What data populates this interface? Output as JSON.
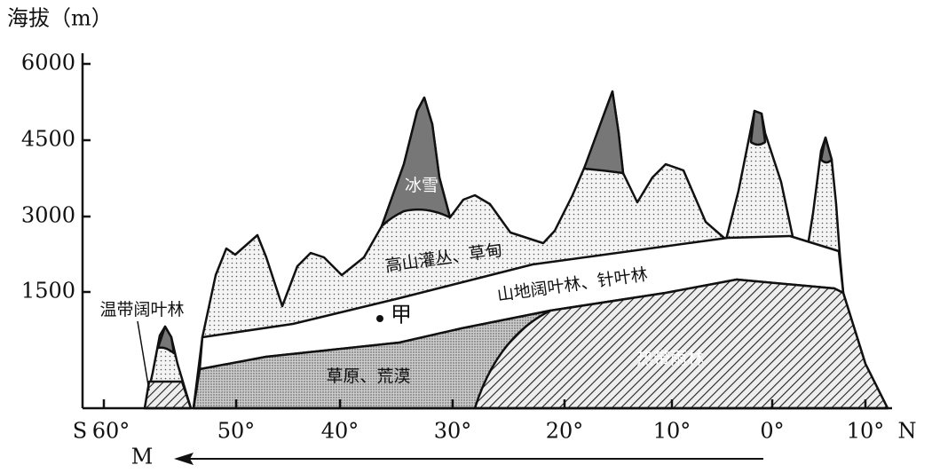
{
  "y_axis": {
    "label": "海拔（m）",
    "ticks": [
      "6000",
      "4500",
      "3000",
      "1500"
    ]
  },
  "x_axis": {
    "start": "S",
    "end": "N",
    "ticks": [
      "60°",
      "50°",
      "40°",
      "30°",
      "20°",
      "10°",
      "0°",
      "10°"
    ]
  },
  "zones": {
    "snow": "冰雪",
    "alpine": "高山灌丛、草甸",
    "mountain_forest": "山地阔叶林、针叶林",
    "temperate": "温带阔叶林",
    "steppe": "草原、荒漠",
    "rainforest": "热带雨林"
  },
  "point": "甲",
  "arrow": "M"
}
